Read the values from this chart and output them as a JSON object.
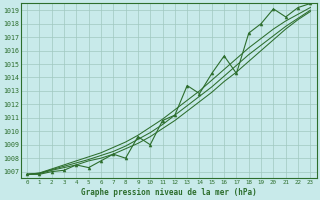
{
  "title": "Graphe pression niveau de la mer (hPa)",
  "x_ticks": [
    0,
    1,
    2,
    3,
    4,
    5,
    6,
    7,
    8,
    9,
    10,
    11,
    12,
    13,
    14,
    15,
    16,
    17,
    18,
    19,
    20,
    21,
    22,
    23
  ],
  "ylim": [
    1006.5,
    1019.5
  ],
  "xlim": [
    -0.5,
    23.5
  ],
  "yticks": [
    1007,
    1008,
    1009,
    1010,
    1011,
    1012,
    1013,
    1014,
    1015,
    1016,
    1017,
    1018,
    1019
  ],
  "bg_color": "#c8eaea",
  "grid_color": "#a0c8c0",
  "line_color": "#2d6e2d",
  "marker_color": "#2d6e2d",
  "pressure_zigzag": [
    1006.8,
    1006.8,
    1007.0,
    1007.1,
    1007.5,
    1007.3,
    1007.8,
    1008.3,
    1008.0,
    1009.6,
    1009.0,
    1010.8,
    1011.2,
    1013.4,
    1012.8,
    1014.3,
    1015.6,
    1014.3,
    1017.3,
    1018.0,
    1019.1,
    1018.5,
    1019.2,
    1019.5
  ],
  "pressure_line1": [
    1006.8,
    1006.85,
    1007.1,
    1007.3,
    1007.5,
    1007.8,
    1008.0,
    1008.3,
    1008.7,
    1009.1,
    1009.6,
    1010.2,
    1010.8,
    1011.5,
    1012.2,
    1012.9,
    1013.7,
    1014.4,
    1015.2,
    1016.0,
    1016.8,
    1017.6,
    1018.3,
    1018.9
  ],
  "pressure_line2": [
    1006.8,
    1006.88,
    1007.15,
    1007.4,
    1007.65,
    1007.9,
    1008.2,
    1008.5,
    1008.9,
    1009.4,
    1009.9,
    1010.5,
    1011.2,
    1011.9,
    1012.6,
    1013.3,
    1014.1,
    1014.9,
    1015.7,
    1016.4,
    1017.1,
    1017.8,
    1018.4,
    1019.0
  ],
  "pressure_line3": [
    1006.8,
    1006.9,
    1007.2,
    1007.5,
    1007.8,
    1008.1,
    1008.4,
    1008.8,
    1009.2,
    1009.7,
    1010.3,
    1010.9,
    1011.6,
    1012.3,
    1013.0,
    1013.8,
    1014.6,
    1015.4,
    1016.2,
    1016.9,
    1017.6,
    1018.2,
    1018.7,
    1019.2
  ]
}
